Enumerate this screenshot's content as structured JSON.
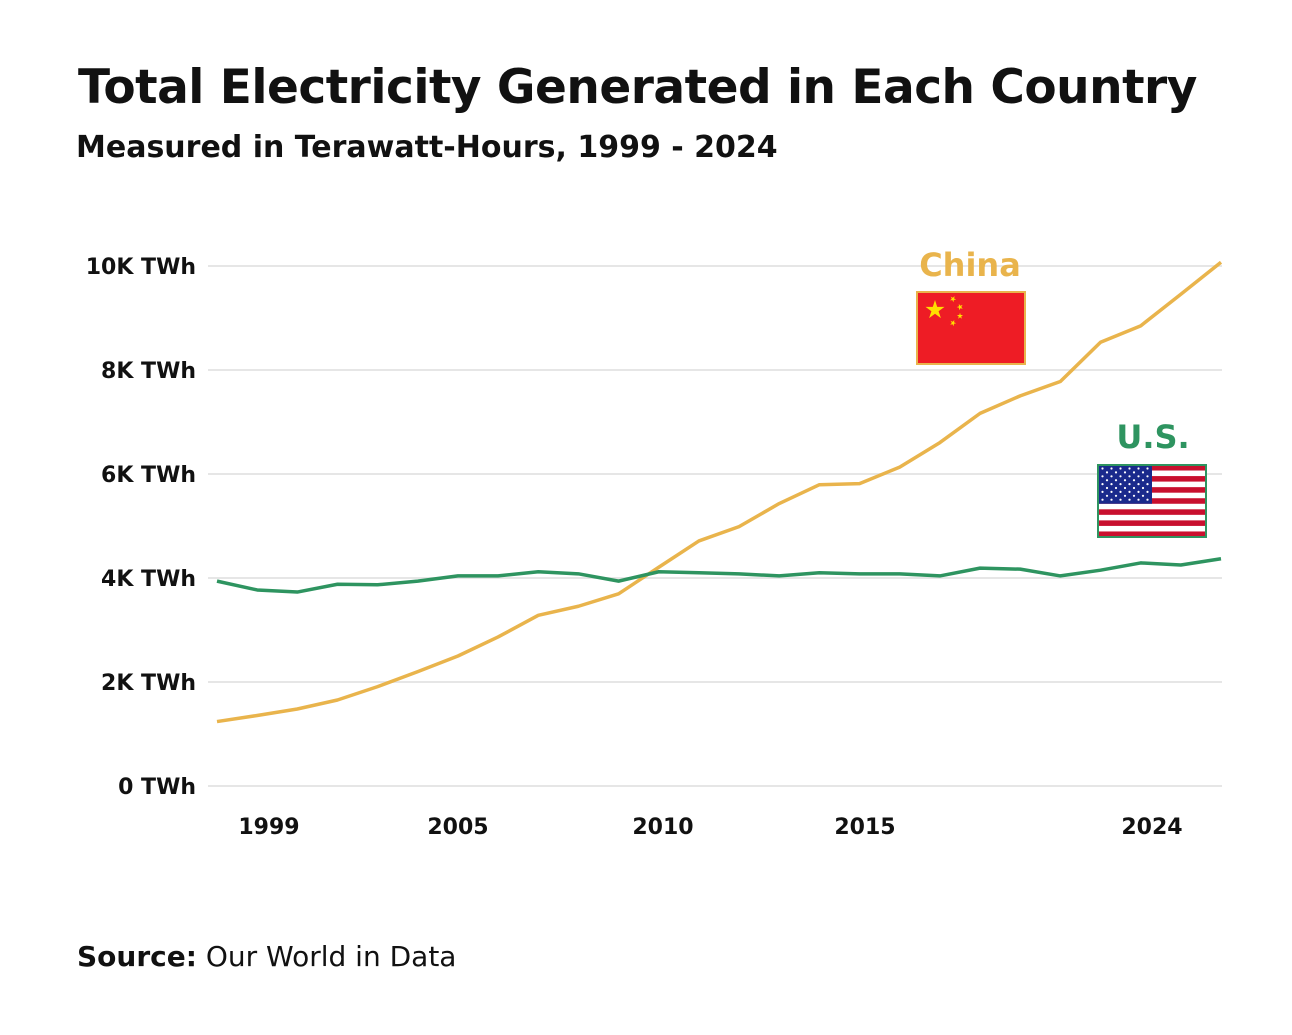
{
  "chart_data": {
    "type": "line",
    "title": "Total Electricity Generated in Each Country",
    "subtitle": "Measured in Terawatt-Hours, 1999 - 2024",
    "xlabel": "",
    "ylabel": "",
    "x": [
      1999,
      2000,
      2001,
      2002,
      2003,
      2004,
      2005,
      2006,
      2007,
      2008,
      2009,
      2010,
      2011,
      2012,
      2013,
      2014,
      2015,
      2016,
      2017,
      2018,
      2019,
      2020,
      2021,
      2022,
      2023,
      2024
    ],
    "xlim": [
      1999,
      2024
    ],
    "x_ticks": [
      "1999",
      "2005",
      "2010",
      "2015",
      "2024"
    ],
    "ylim": [
      0,
      10000
    ],
    "y_ticks": [
      0,
      2000,
      4000,
      6000,
      8000,
      10000
    ],
    "y_tick_labels": [
      "0 TWh",
      "2K TWh",
      "4K TWh",
      "6K TWh",
      "8K TWh",
      "10K TWh"
    ],
    "grid": true,
    "series": [
      {
        "name": "China",
        "color": "#e9b44c",
        "flag": "china-flag",
        "values": [
          1239,
          1356,
          1481,
          1654,
          1911,
          2200,
          2500,
          2866,
          3282,
          3457,
          3696,
          4207,
          4713,
          4988,
          5432,
          5794,
          5815,
          6133,
          6604,
          7166,
          7503,
          7779,
          8534,
          8849,
          9456,
          10073
        ]
      },
      {
        "name": "U.S.",
        "color": "#2e9460",
        "flag": "us-flag",
        "values": [
          3940,
          3770,
          3730,
          3880,
          3870,
          3940,
          4040,
          4040,
          4120,
          4080,
          3940,
          4120,
          4100,
          4080,
          4040,
          4100,
          4080,
          4080,
          4040,
          4190,
          4170,
          4040,
          4150,
          4290,
          4250,
          4370
        ]
      }
    ]
  },
  "source": {
    "label": "Source:",
    "text": "Our World in Data"
  }
}
